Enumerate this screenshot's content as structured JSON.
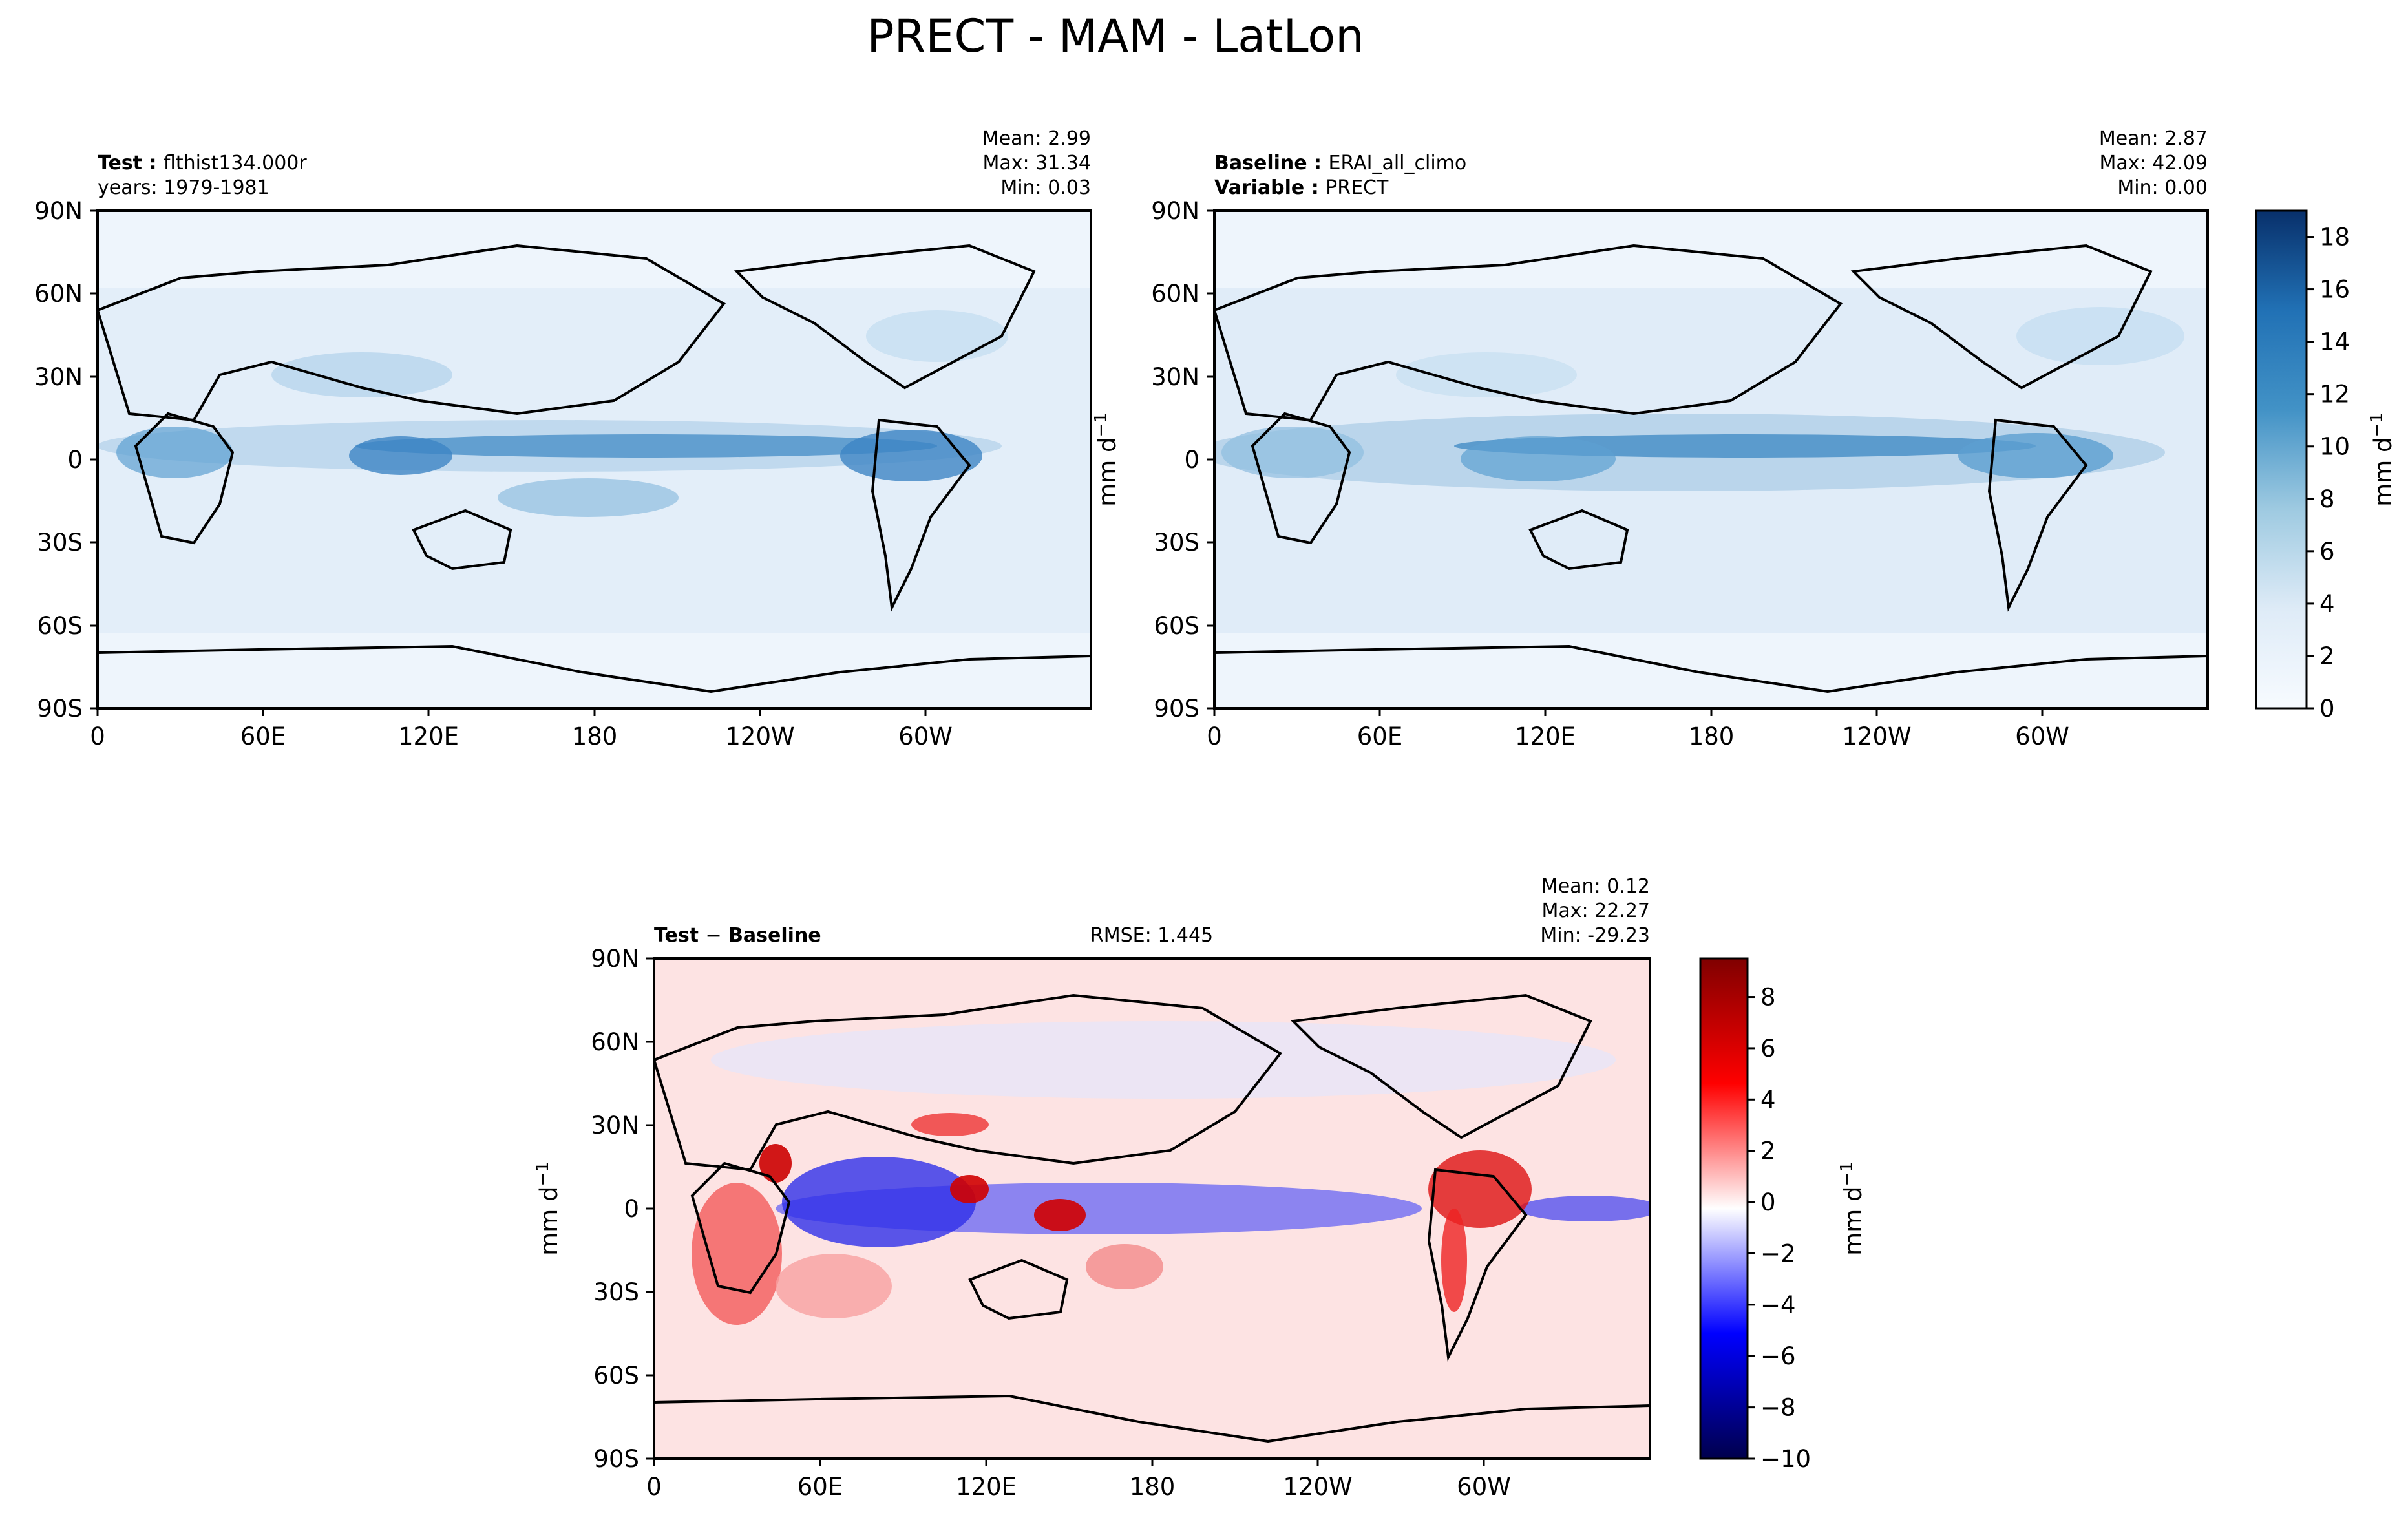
{
  "figure": {
    "title": "PRECT - MAM - LatLon"
  },
  "chart_data": [
    {
      "type": "heatmap",
      "panel": "test",
      "header_left": [
        {
          "key": "Test",
          "value": "flthist134.000r"
        },
        {
          "key": "",
          "value": "years: 1979-1981"
        }
      ],
      "stats": {
        "mean": "Mean:  2.99",
        "max": "Max: 31.34",
        "min": "Min:  0.03"
      },
      "x_ticks": [
        "0",
        "60E",
        "120E",
        "180",
        "120W",
        "60W"
      ],
      "y_ticks": [
        "90N",
        "60N",
        "30N",
        "0",
        "30S",
        "60S",
        "90S"
      ],
      "xlim": [
        0,
        360
      ],
      "ylim": [
        -90,
        90
      ],
      "colormap": "Blues",
      "max_value": 31.34,
      "min_value": 0.03,
      "mean_value": 2.99
    },
    {
      "type": "heatmap",
      "panel": "baseline",
      "header_left": [
        {
          "key": "Baseline",
          "value": "ERAI_all_climo"
        },
        {
          "key": "Variable",
          "value": "PRECT"
        }
      ],
      "stats": {
        "mean": "Mean:  2.87",
        "max": "Max: 42.09",
        "min": "Min:  0.00"
      },
      "x_ticks": [
        "0",
        "60E",
        "120E",
        "180",
        "120W",
        "60W"
      ],
      "y_ticks": [
        "90N",
        "60N",
        "30N",
        "0",
        "30S",
        "60S",
        "90S"
      ],
      "xlim": [
        0,
        360
      ],
      "ylim": [
        -90,
        90
      ],
      "colormap": "Blues",
      "max_value": 42.09,
      "min_value": 0.0,
      "mean_value": 2.87,
      "colorbar": {
        "label": "mm d",
        "label_exponent": "−1",
        "ticks": [
          "0",
          "2",
          "4",
          "6",
          "8",
          "10",
          "12",
          "14",
          "16",
          "18"
        ],
        "range": [
          0,
          19
        ],
        "low_color": "#f7fbff",
        "high_color": "#08306b"
      },
      "ylabel": "mm d",
      "ylabel_exponent": "−1"
    },
    {
      "type": "heatmap",
      "panel": "difference",
      "header_left": [
        {
          "key": "Test",
          "value": "Baseline"
        }
      ],
      "header_center": "RMSE: 1.445",
      "rmse": 1.445,
      "stats": {
        "mean": "Mean:  0.12",
        "max": "Max: 22.27",
        "min": "Min: -29.23"
      },
      "x_ticks": [
        "0",
        "60E",
        "120E",
        "180",
        "120W",
        "60W"
      ],
      "y_ticks": [
        "90N",
        "60N",
        "30N",
        "0",
        "30S",
        "60S",
        "90S"
      ],
      "xlim": [
        0,
        360
      ],
      "ylim": [
        -90,
        90
      ],
      "colormap": "seismic",
      "max_value": 22.27,
      "min_value": -29.23,
      "mean_value": 0.12,
      "colorbar": {
        "label": "mm d",
        "label_exponent": "−1",
        "ticks": [
          "−10",
          "−8",
          "−6",
          "−4",
          "−2",
          "0",
          "2",
          "4",
          "6",
          "8"
        ],
        "range": [
          -10,
          9.5
        ],
        "low_color": "#00004c",
        "mid_color": "#ffffff",
        "high_color": "#800000"
      },
      "ylabel": "mm d",
      "ylabel_exponent": "−1"
    }
  ]
}
